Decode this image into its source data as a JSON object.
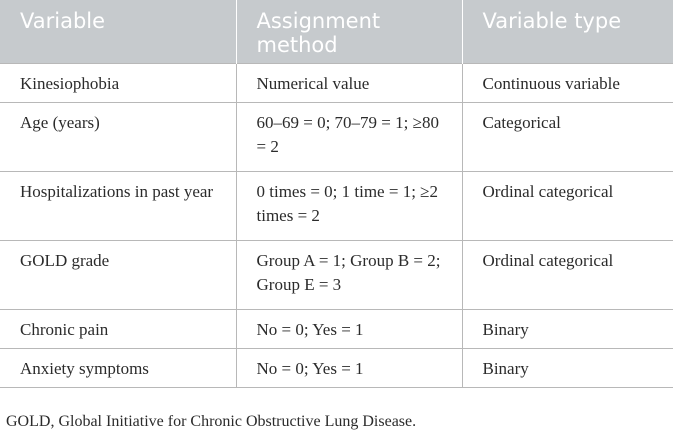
{
  "table": {
    "headers": [
      "Variable",
      "Assignment method",
      "Variable type"
    ],
    "rows": [
      [
        "Kinesiophobia",
        "Numerical value",
        "Continuous variable"
      ],
      [
        "Age (years)",
        "60–69 = 0; 70–79 = 1; ≥80 = 2",
        "Categorical"
      ],
      [
        "Hospitalizations in past year",
        "0 times = 0; 1 time = 1; ≥2 times = 2",
        "Ordinal categorical"
      ],
      [
        "GOLD grade",
        "Group A = 1; Group B = 2; Group E = 3",
        "Ordinal categorical"
      ],
      [
        "Chronic pain",
        "No = 0; Yes = 1",
        "Binary"
      ],
      [
        "Anxiety symptoms",
        "No = 0; Yes = 1",
        "Binary"
      ]
    ]
  },
  "footnote": "GOLD, Global Initiative for Chronic Obstructive Lung Disease."
}
